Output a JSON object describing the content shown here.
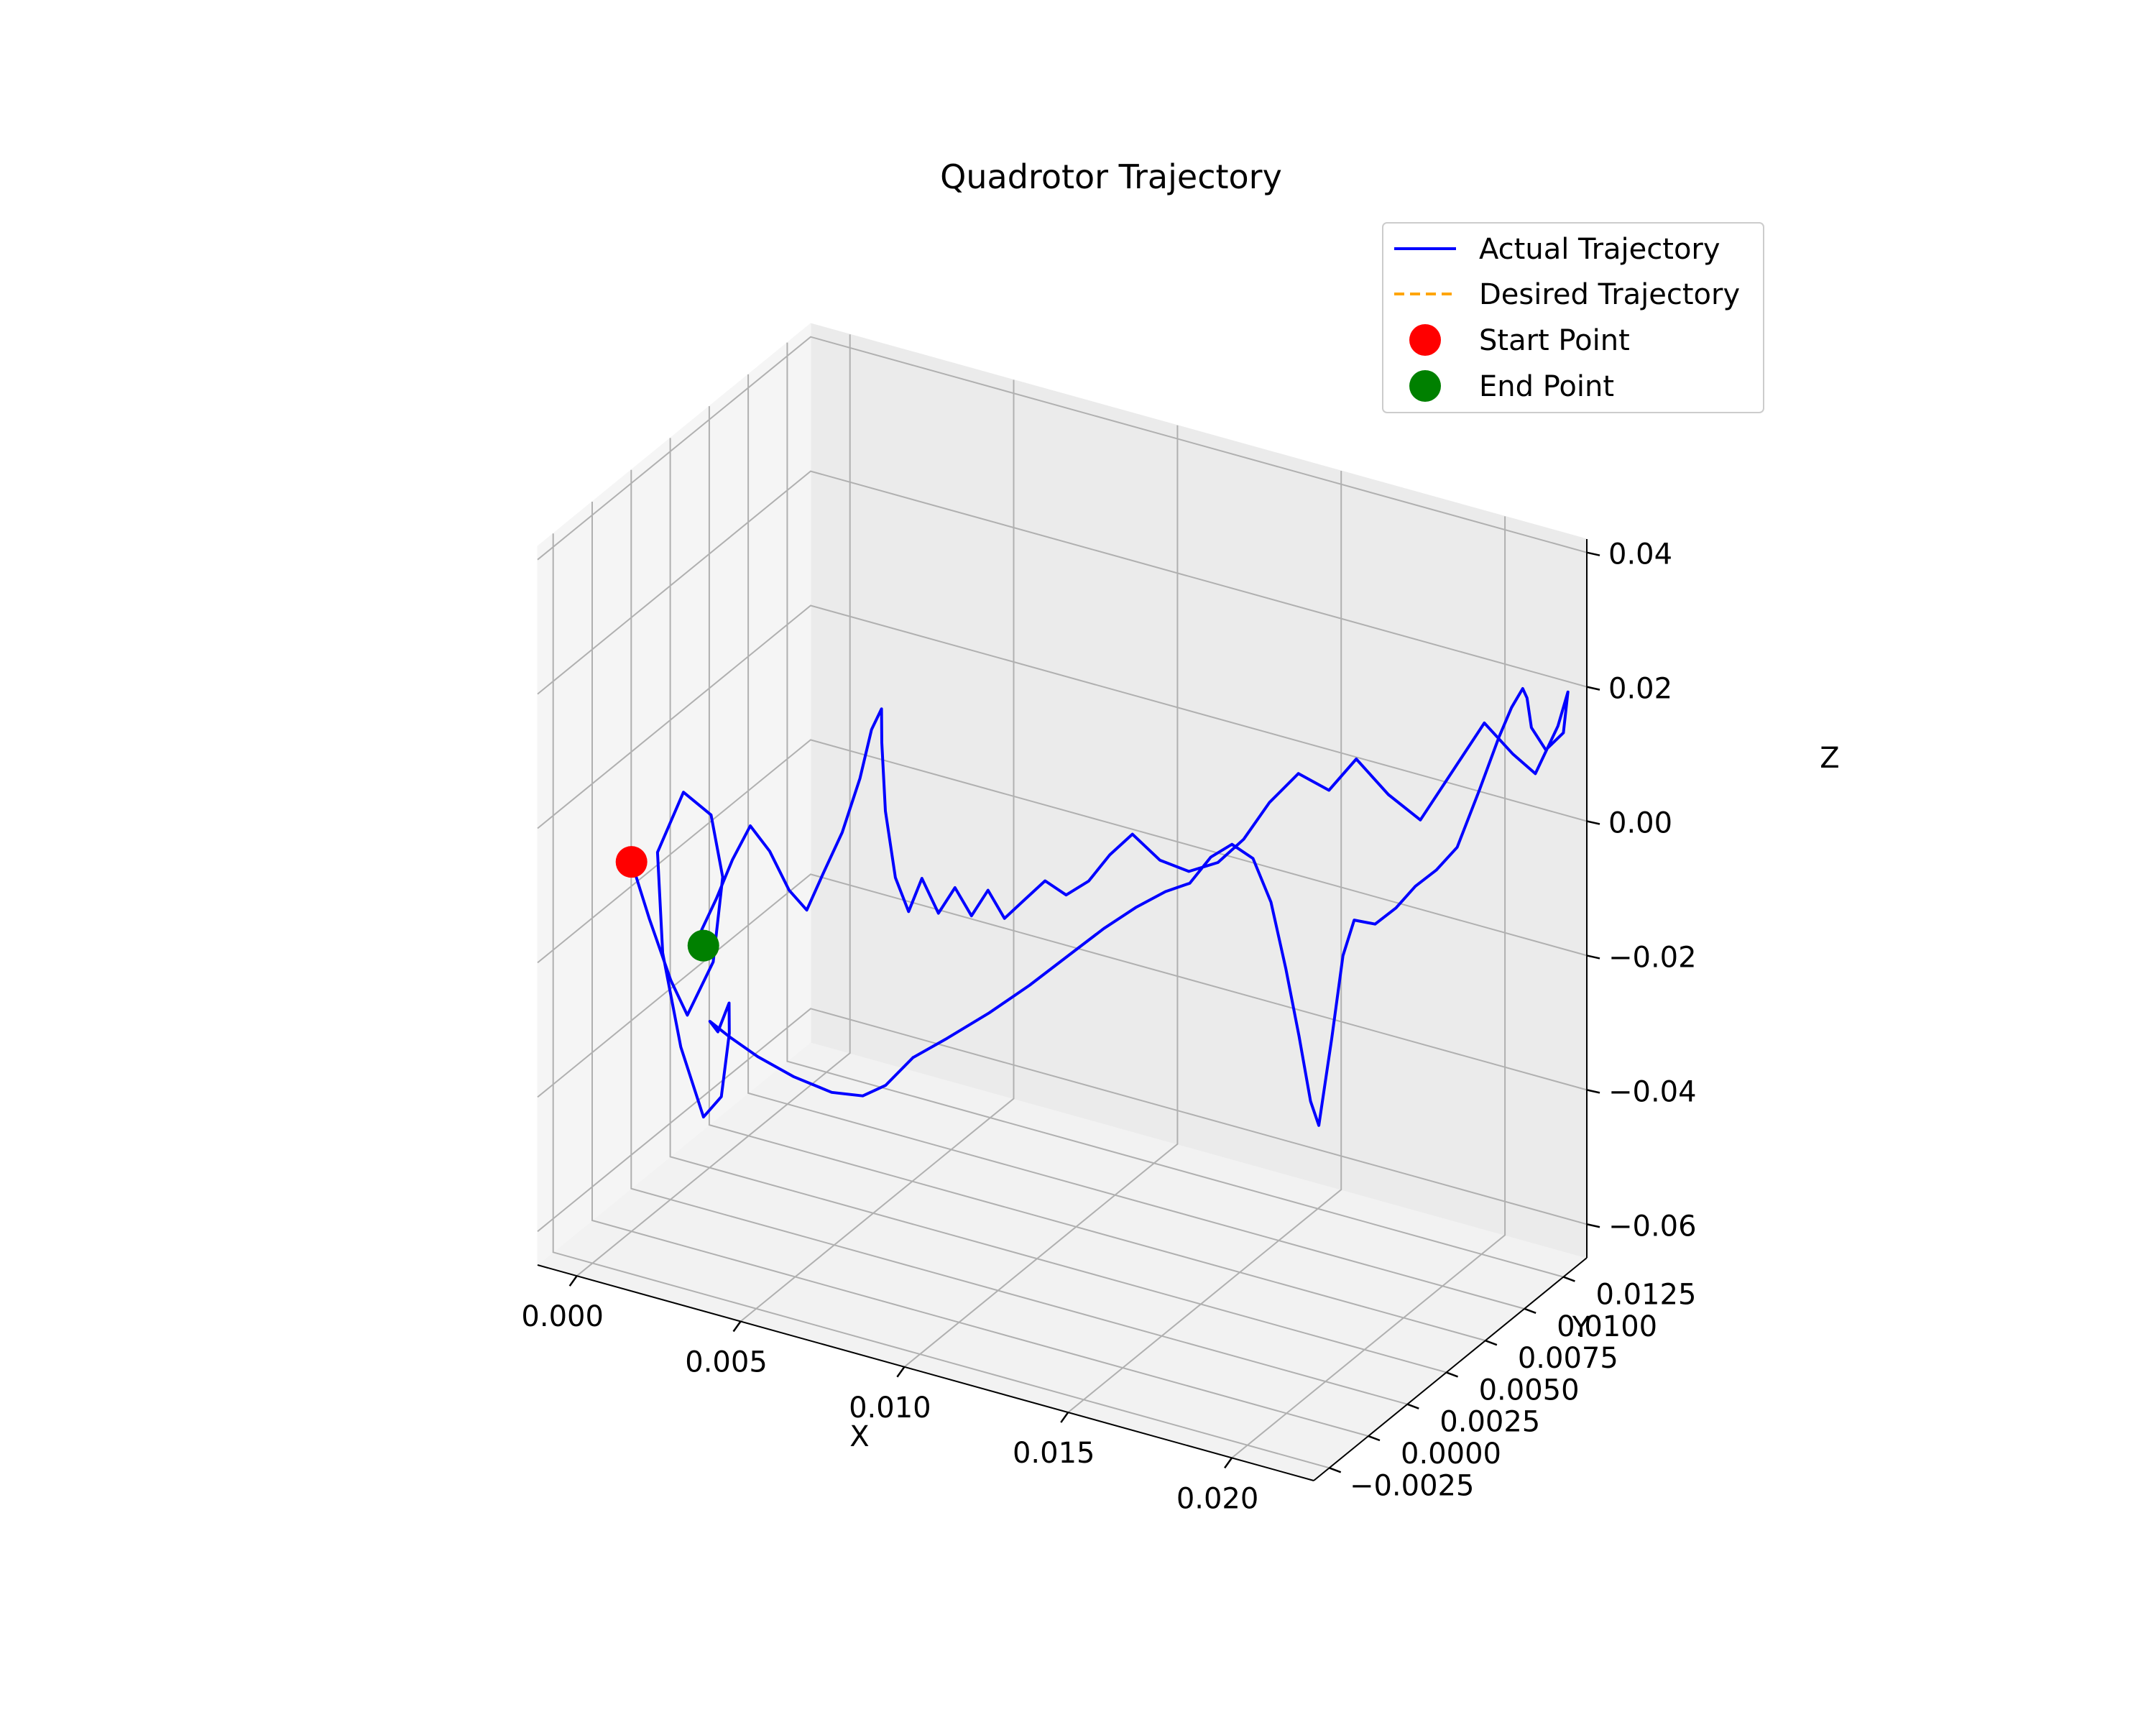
{
  "chart_data": {
    "type": "line",
    "title": "Quadrotor Trajectory",
    "xlabel": "X",
    "ylabel": "Y",
    "zlabel": "Z",
    "x_ticks": [
      "0.000",
      "0.005",
      "0.010",
      "0.015",
      "0.020"
    ],
    "y_ticks": [
      "−0.0025",
      "0.0000",
      "0.0025",
      "0.0050",
      "0.0075",
      "0.0100",
      "0.0125"
    ],
    "z_ticks": [
      "−0.06",
      "−0.04",
      "−0.02",
      "0.00",
      "0.02",
      "0.04"
    ],
    "xlim": [
      -0.0012,
      0.0225
    ],
    "ylim": [
      -0.0035,
      0.014
    ],
    "zlim": [
      -0.065,
      0.042
    ],
    "grid": true,
    "legend_position": "top-right",
    "legend": [
      {
        "label": "Actual Trajectory",
        "kind": "line",
        "color": "#0000ff"
      },
      {
        "label": "Desired Trajectory",
        "kind": "dashed-line",
        "color": "#ffa500"
      },
      {
        "label": "Start Point",
        "kind": "marker",
        "color": "#ff0000"
      },
      {
        "label": "End Point",
        "kind": "marker",
        "color": "#008000"
      }
    ],
    "series": [
      {
        "name": "Actual Trajectory",
        "color": "#0000ff",
        "style": "solid",
        "points": [
          [
            0.0,
            0.0,
            -0.01
          ],
          [
            0.0005,
            0.0001,
            -0.018
          ],
          [
            0.0012,
            0.0,
            -0.026
          ],
          [
            0.0018,
            -0.0002,
            -0.03
          ],
          [
            0.0024,
            0.0002,
            -0.022
          ],
          [
            0.0025,
            0.0006,
            -0.01
          ],
          [
            0.002,
            0.0009,
            -0.002
          ],
          [
            0.0013,
            0.0006,
            0.001
          ],
          [
            0.0007,
            0.0002,
            -0.008
          ],
          [
            0.001,
            -0.0001,
            -0.022
          ],
          [
            0.0016,
            -0.0002,
            -0.035
          ],
          [
            0.0022,
            0.0,
            -0.045
          ],
          [
            0.0026,
            0.0003,
            -0.042
          ],
          [
            0.0027,
            0.0006,
            -0.033
          ],
          [
            0.0026,
            0.0008,
            -0.029
          ],
          [
            0.0024,
            0.0005,
            -0.033
          ],
          [
            0.0023,
            0.0002,
            -0.031
          ],
          [
            0.003,
            0.0,
            -0.032
          ],
          [
            0.004,
            -0.0003,
            -0.033
          ],
          [
            0.0052,
            -0.0005,
            -0.034
          ],
          [
            0.0064,
            -0.0006,
            -0.0345
          ],
          [
            0.0073,
            -0.0005,
            -0.034
          ],
          [
            0.0079,
            -0.0003,
            -0.032
          ],
          [
            0.0085,
            0.0002,
            -0.028
          ],
          [
            0.0093,
            0.0007,
            -0.025
          ],
          [
            0.0103,
            0.0013,
            -0.021
          ],
          [
            0.0112,
            0.002,
            -0.017
          ],
          [
            0.0121,
            0.0027,
            -0.0125
          ],
          [
            0.0129,
            0.0032,
            -0.0085
          ],
          [
            0.0137,
            0.0036,
            -0.005
          ],
          [
            0.0144,
            0.004,
            -0.0025
          ],
          [
            0.015,
            0.0043,
            -0.001
          ],
          [
            0.0155,
            0.0046,
            0.003
          ],
          [
            0.016,
            0.0049,
            0.005
          ],
          [
            0.0165,
            0.0052,
            0.003
          ],
          [
            0.017,
            0.0053,
            -0.003
          ],
          [
            0.0175,
            0.0052,
            -0.012
          ],
          [
            0.018,
            0.005,
            -0.021
          ],
          [
            0.0184,
            0.0049,
            -0.03
          ],
          [
            0.0187,
            0.0048,
            -0.033
          ],
          [
            0.019,
            0.005,
            -0.02
          ],
          [
            0.0192,
            0.0053,
            -0.008
          ],
          [
            0.0194,
            0.0056,
            -0.003
          ],
          [
            0.0198,
            0.0061,
            -0.004
          ],
          [
            0.0202,
            0.0066,
            -0.002
          ],
          [
            0.0206,
            0.007,
            0.001
          ],
          [
            0.021,
            0.0075,
            0.003
          ],
          [
            0.0214,
            0.008,
            0.006
          ],
          [
            0.0218,
            0.0086,
            0.014
          ],
          [
            0.0221,
            0.0092,
            0.021
          ],
          [
            0.0223,
            0.0096,
            0.025
          ],
          [
            0.0224,
            0.0101,
            0.027
          ],
          [
            0.0222,
            0.0108,
            0.024
          ],
          [
            0.022,
            0.0115,
            0.018
          ],
          [
            0.0222,
            0.012,
            0.014
          ],
          [
            0.0225,
            0.0125,
            0.016
          ],
          [
            0.0224,
            0.013,
            0.021
          ],
          [
            0.022,
            0.0132,
            0.015
          ],
          [
            0.0215,
            0.0128,
            0.008
          ],
          [
            0.0212,
            0.012,
            0.012
          ],
          [
            0.0208,
            0.011,
            0.018
          ],
          [
            0.0203,
            0.01,
            0.012
          ],
          [
            0.0198,
            0.009,
            0.006
          ],
          [
            0.0193,
            0.008,
            0.011
          ],
          [
            0.0187,
            0.0072,
            0.017
          ],
          [
            0.0182,
            0.0065,
            0.013
          ],
          [
            0.0176,
            0.0058,
            0.016
          ],
          [
            0.017,
            0.0052,
            0.012
          ],
          [
            0.0165,
            0.0046,
            0.007
          ],
          [
            0.016,
            0.004,
            0.004
          ],
          [
            0.0154,
            0.0034,
            0.003
          ],
          [
            0.0148,
            0.0028,
            0.005
          ],
          [
            0.0142,
            0.0023,
            0.009
          ],
          [
            0.0137,
            0.0019,
            0.006
          ],
          [
            0.0132,
            0.0016,
            0.002
          ],
          [
            0.0127,
            0.0012,
            0.0
          ],
          [
            0.0122,
            0.0009,
            0.002
          ],
          [
            0.0117,
            0.0006,
            -0.001
          ],
          [
            0.0112,
            0.0004,
            -0.004
          ],
          [
            0.0106,
            0.0006,
            -0.001
          ],
          [
            0.01,
            0.0008,
            -0.006
          ],
          [
            0.0094,
            0.001,
            -0.003
          ],
          [
            0.0088,
            0.0012,
            -0.008
          ],
          [
            0.0082,
            0.0014,
            -0.004
          ],
          [
            0.0077,
            0.0016,
            -0.01
          ],
          [
            0.0072,
            0.0018,
            -0.006
          ],
          [
            0.0068,
            0.002,
            0.003
          ],
          [
            0.0065,
            0.0024,
            0.012
          ],
          [
            0.0063,
            0.0028,
            0.016
          ],
          [
            0.0059,
            0.003,
            0.012
          ],
          [
            0.0055,
            0.0031,
            0.004
          ],
          [
            0.0051,
            0.0028,
            -0.004
          ],
          [
            0.0047,
            0.0024,
            -0.01
          ],
          [
            0.0044,
            0.002,
            -0.015
          ],
          [
            0.004,
            0.0017,
            -0.012
          ],
          [
            0.0036,
            0.0013,
            -0.006
          ],
          [
            0.0032,
            0.0009,
            -0.002
          ],
          [
            0.0028,
            0.0006,
            -0.007
          ],
          [
            0.0024,
            0.0004,
            -0.013
          ],
          [
            0.002,
            0.0003,
            -0.018
          ],
          [
            0.0021,
            0.0002,
            -0.02
          ]
        ]
      }
    ],
    "markers": [
      {
        "name": "Start Point",
        "color": "#ff0000",
        "point": [
          0.0,
          0.0,
          -0.01
        ]
      },
      {
        "name": "End Point",
        "color": "#008000",
        "point": [
          0.0021,
          0.0002,
          -0.02
        ]
      }
    ]
  }
}
